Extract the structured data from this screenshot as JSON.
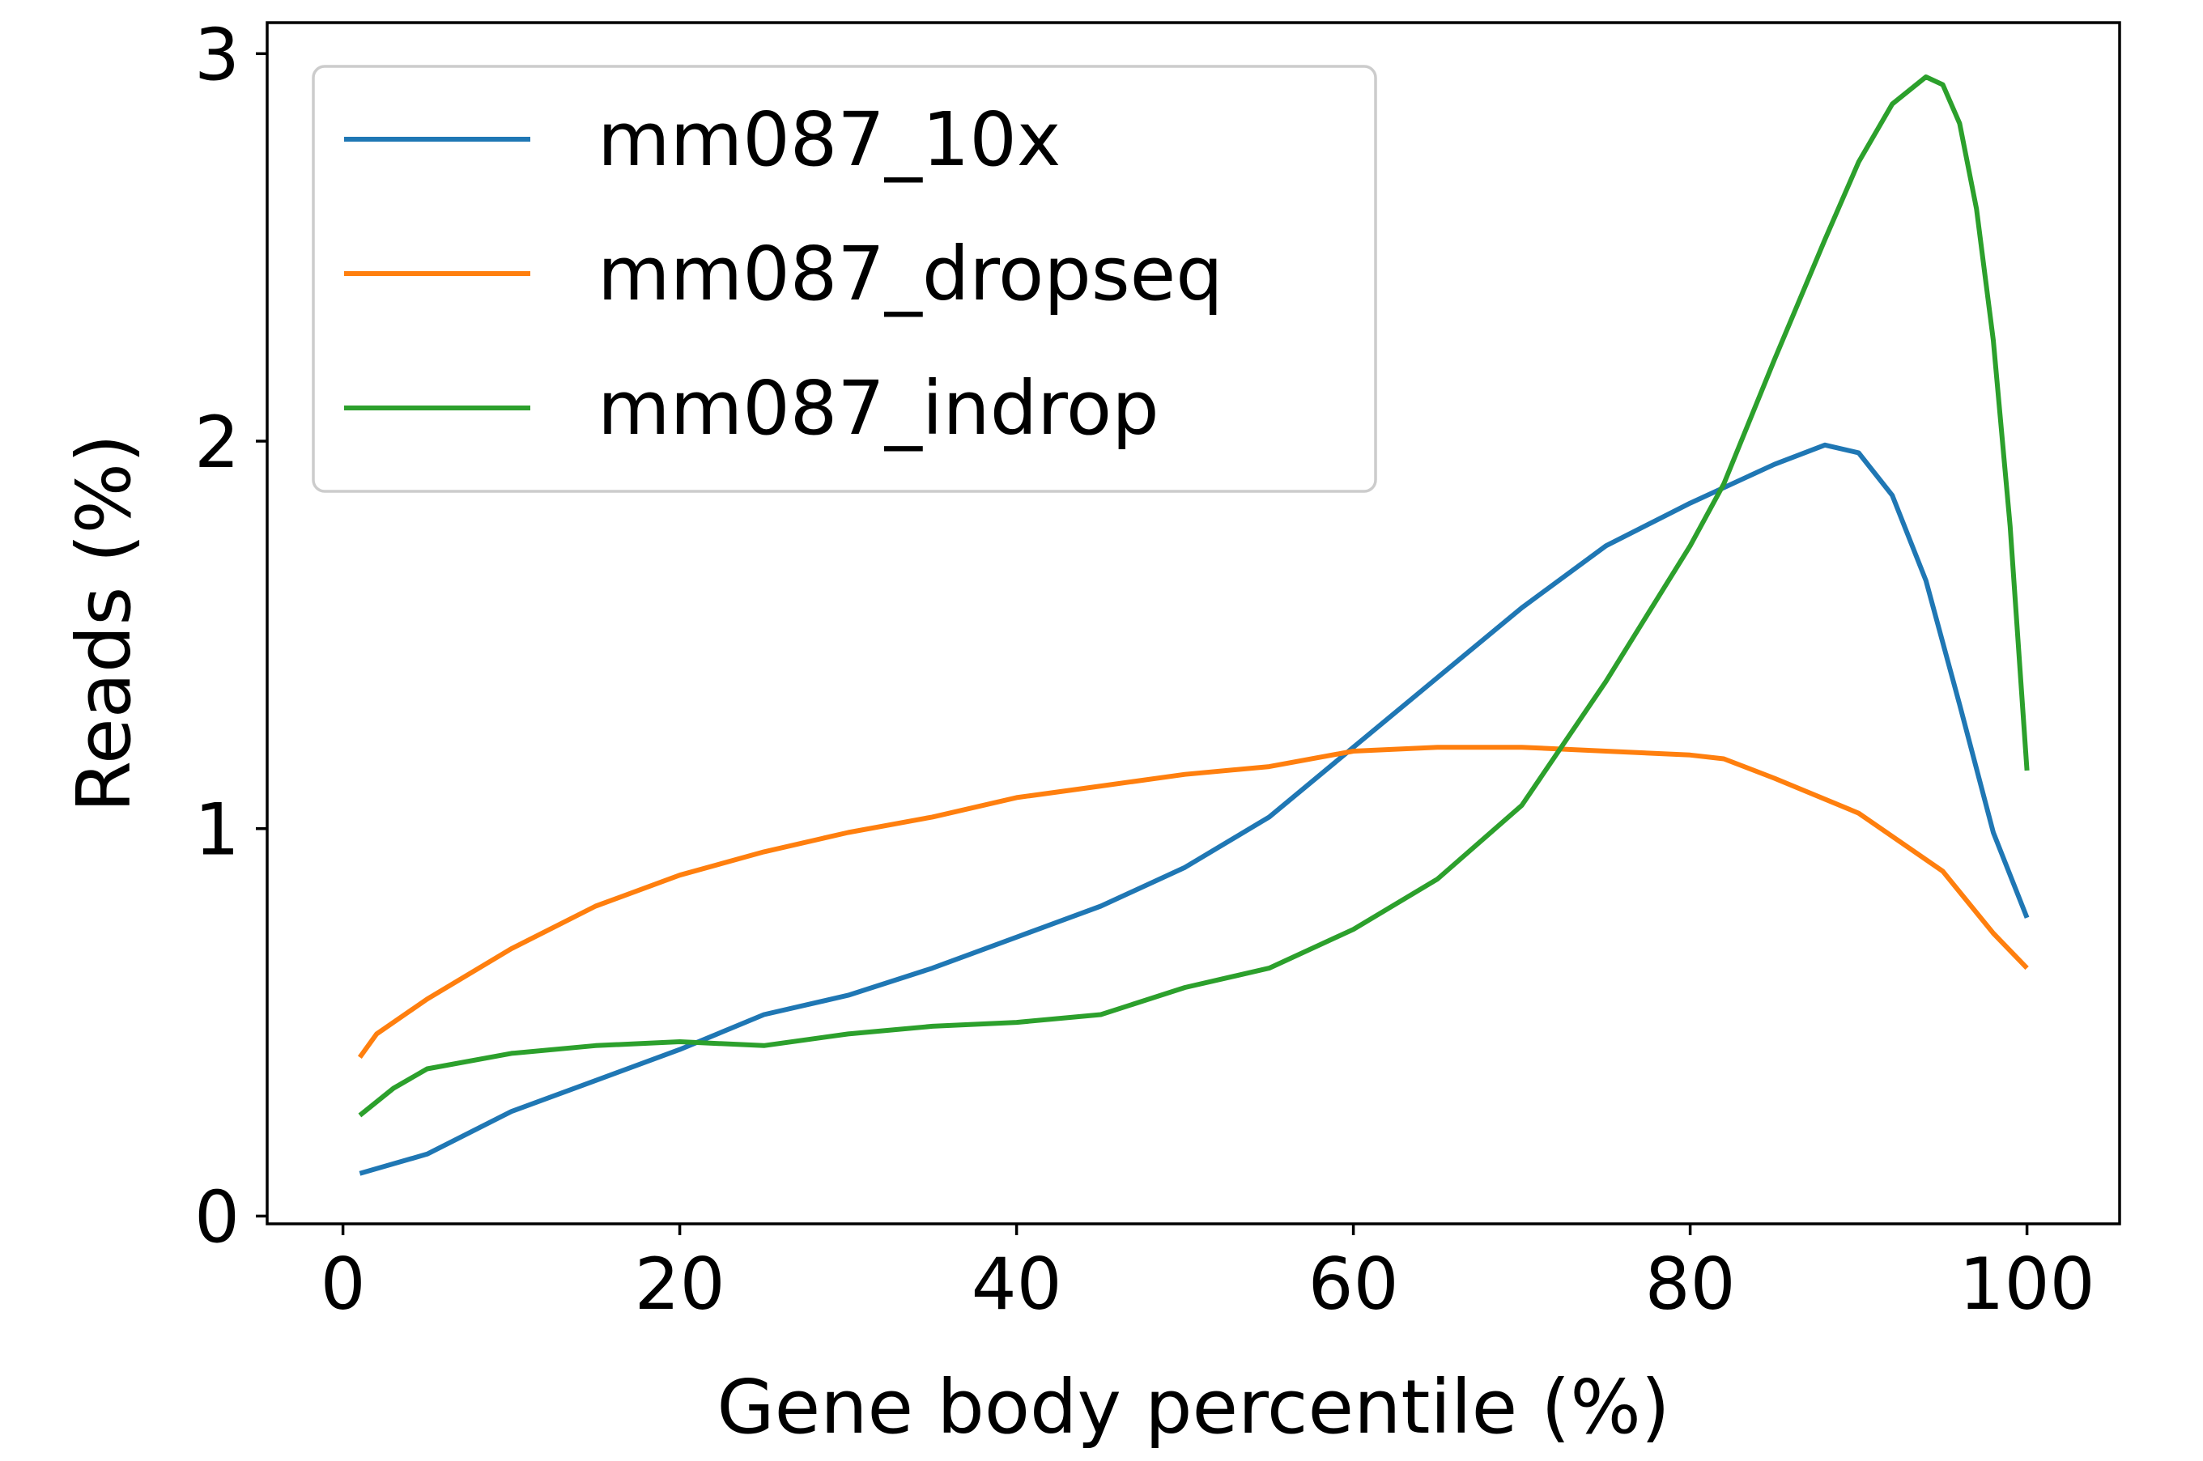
{
  "chart_data": {
    "type": "line",
    "title": "",
    "xlabel": "Gene body percentile (%)",
    "ylabel": "Reads (%)",
    "xlim": [
      -4.5,
      105.5
    ],
    "ylim": [
      -0.02,
      3.08
    ],
    "xticks": [
      0,
      20,
      40,
      60,
      80,
      100
    ],
    "yticks": [
      0,
      1,
      2,
      3
    ],
    "xtick_labels": [
      "0",
      "20",
      "40",
      "60",
      "80",
      "100"
    ],
    "ytick_labels": [
      "0",
      "1",
      "2",
      "3"
    ],
    "grid": false,
    "legend": {
      "position": "top-left",
      "entries": [
        "mm087_10x",
        "mm087_dropseq",
        "mm087_indrop"
      ]
    },
    "series": [
      {
        "name": "mm087_10x",
        "color": "#1f77b4",
        "points": [
          [
            1,
            0.11
          ],
          [
            5,
            0.16
          ],
          [
            10,
            0.27
          ],
          [
            15,
            0.35
          ],
          [
            20,
            0.43
          ],
          [
            25,
            0.52
          ],
          [
            30,
            0.57
          ],
          [
            35,
            0.64
          ],
          [
            40,
            0.72
          ],
          [
            45,
            0.8
          ],
          [
            50,
            0.9
          ],
          [
            55,
            1.03
          ],
          [
            60,
            1.21
          ],
          [
            65,
            1.39
          ],
          [
            70,
            1.57
          ],
          [
            75,
            1.73
          ],
          [
            80,
            1.84
          ],
          [
            85,
            1.94
          ],
          [
            88,
            1.99
          ],
          [
            90,
            1.97
          ],
          [
            92,
            1.86
          ],
          [
            94,
            1.64
          ],
          [
            96,
            1.32
          ],
          [
            98,
            0.99
          ],
          [
            100,
            0.77
          ]
        ]
      },
      {
        "name": "mm087_dropseq",
        "color": "#ff7f0e",
        "points": [
          [
            1,
            0.41
          ],
          [
            2,
            0.47
          ],
          [
            5,
            0.56
          ],
          [
            10,
            0.69
          ],
          [
            15,
            0.8
          ],
          [
            20,
            0.88
          ],
          [
            25,
            0.94
          ],
          [
            30,
            0.99
          ],
          [
            35,
            1.03
          ],
          [
            40,
            1.08
          ],
          [
            45,
            1.11
          ],
          [
            50,
            1.14
          ],
          [
            55,
            1.16
          ],
          [
            60,
            1.2
          ],
          [
            65,
            1.21
          ],
          [
            70,
            1.21
          ],
          [
            75,
            1.2
          ],
          [
            80,
            1.19
          ],
          [
            82,
            1.18
          ],
          [
            85,
            1.13
          ],
          [
            90,
            1.04
          ],
          [
            95,
            0.89
          ],
          [
            98,
            0.73
          ],
          [
            100,
            0.64
          ]
        ]
      },
      {
        "name": "mm087_indrop",
        "color": "#2ca02c",
        "points": [
          [
            1,
            0.26
          ],
          [
            3,
            0.33
          ],
          [
            5,
            0.38
          ],
          [
            10,
            0.42
          ],
          [
            15,
            0.44
          ],
          [
            20,
            0.45
          ],
          [
            25,
            0.44
          ],
          [
            30,
            0.47
          ],
          [
            35,
            0.49
          ],
          [
            40,
            0.5
          ],
          [
            45,
            0.52
          ],
          [
            50,
            0.59
          ],
          [
            55,
            0.64
          ],
          [
            60,
            0.74
          ],
          [
            65,
            0.87
          ],
          [
            70,
            1.06
          ],
          [
            75,
            1.38
          ],
          [
            80,
            1.73
          ],
          [
            82,
            1.89
          ],
          [
            85,
            2.21
          ],
          [
            88,
            2.52
          ],
          [
            90,
            2.72
          ],
          [
            92,
            2.87
          ],
          [
            94,
            2.94
          ],
          [
            95,
            2.92
          ],
          [
            96,
            2.82
          ],
          [
            97,
            2.6
          ],
          [
            98,
            2.26
          ],
          [
            99,
            1.78
          ],
          [
            100,
            1.15
          ]
        ]
      }
    ]
  }
}
